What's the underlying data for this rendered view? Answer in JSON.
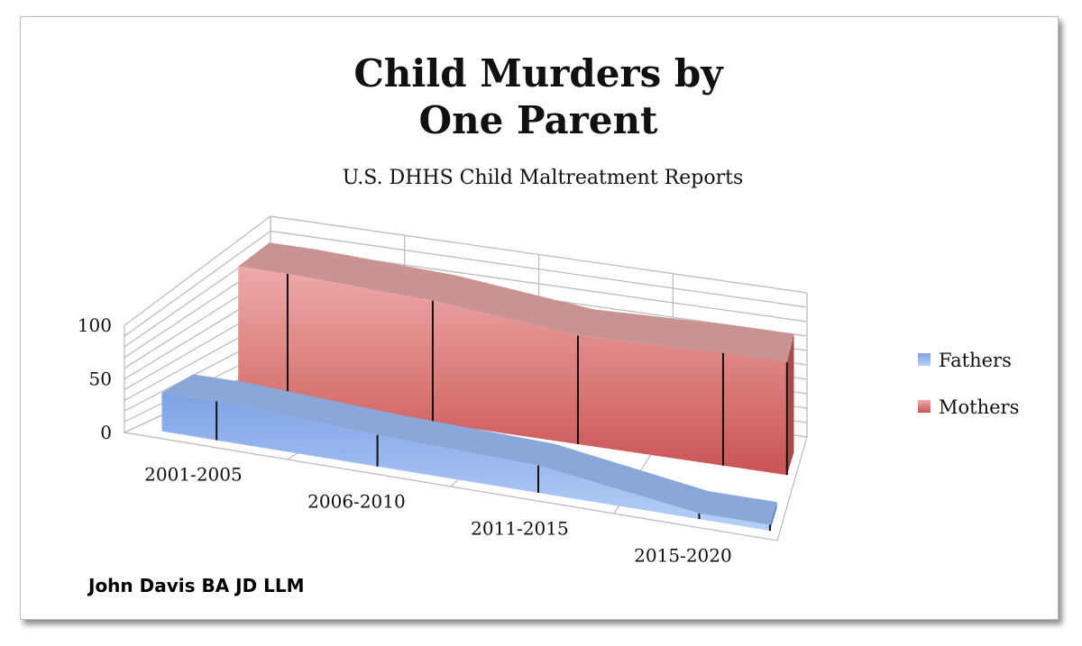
{
  "chart_data": {
    "type": "area",
    "title_lines": [
      "Child Murders by",
      "One Parent"
    ],
    "subtitle": "U.S. DHHS Child Maltreatment Reports",
    "categories": [
      "2001-2005",
      "2006-2010",
      "2011-2015",
      "2015-2020"
    ],
    "y_ticks": [
      "0",
      "50",
      "100"
    ],
    "ylim": [
      0,
      100
    ],
    "grid": true,
    "legend_position": "right",
    "series": [
      {
        "name": "Fathers",
        "values": [
          35,
          28,
          24,
          5
        ],
        "color": "#7ea6ea"
      },
      {
        "name": "Mothers",
        "values": [
          96,
          92,
          82,
          85
        ],
        "color": "#d96b6a"
      }
    ],
    "annotation": "John Davis BA JD LLM"
  }
}
